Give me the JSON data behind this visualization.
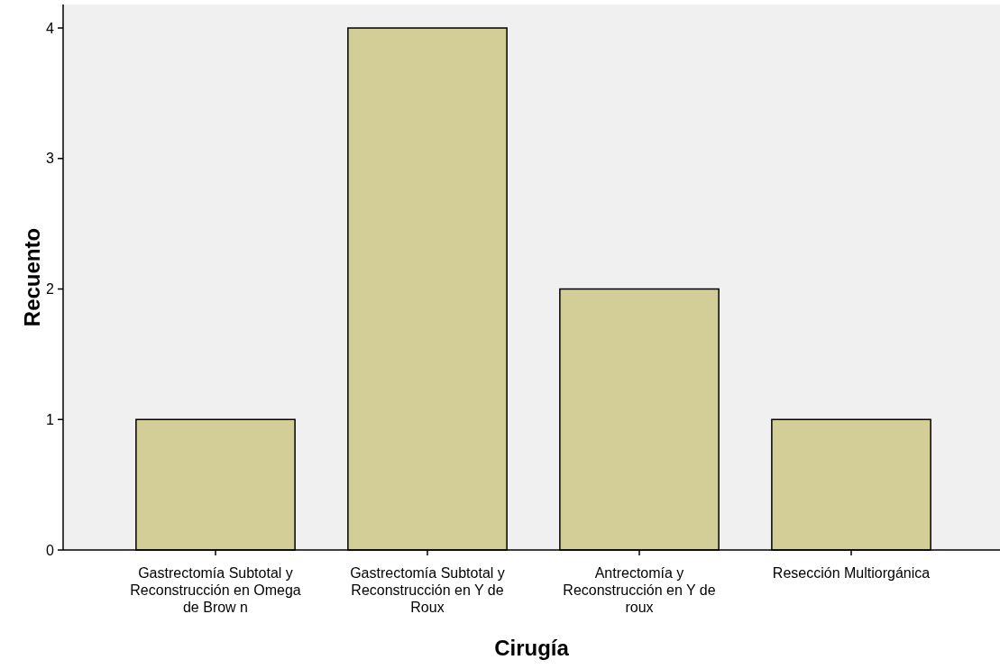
{
  "chart_data": {
    "type": "bar",
    "xlabel": "Cirugía",
    "ylabel": "Recuento",
    "categories": [
      "Gastrectomía Subtotal y Reconstrucción en Omega de Brow n",
      "Gastrectomía Subtotal y Reconstrucción en Y de Roux",
      "Antrectomía y Reconstrucción en Y de roux",
      "Resección Multiorgánica"
    ],
    "values": [
      1,
      4,
      2,
      1
    ],
    "color": "#d3ce97",
    "ylim": [
      0,
      4.18
    ],
    "yticks": [
      0,
      1,
      2,
      3,
      4
    ],
    "grid": false
  }
}
